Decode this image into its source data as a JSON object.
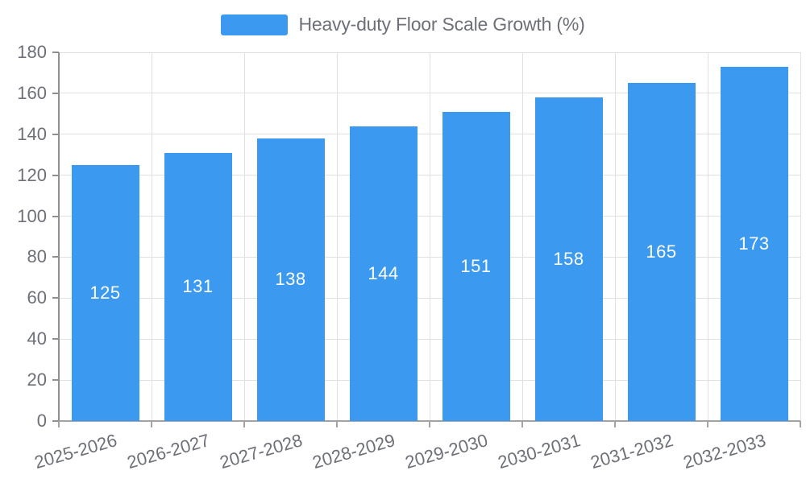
{
  "legend": {
    "label": "Heavy-duty Floor Scale Growth (%)"
  },
  "chart_data": {
    "type": "bar",
    "title": "",
    "series_name": "Heavy-duty Floor Scale Growth (%)",
    "categories": [
      "2025-2026",
      "2026-2027",
      "2027-2028",
      "2028-2029",
      "2029-2030",
      "2030-2031",
      "2031-2032",
      "2032-2033"
    ],
    "values": [
      125,
      131,
      138,
      144,
      151,
      158,
      165,
      173
    ],
    "value_labels": [
      "125",
      "131",
      "138",
      "144",
      "151",
      "158",
      "165",
      "173"
    ],
    "xlabel": "",
    "ylabel": "",
    "ylim": [
      0,
      180
    ],
    "ytick_step": 20,
    "yticks": [
      0,
      20,
      40,
      60,
      80,
      100,
      120,
      140,
      160,
      180
    ],
    "grid": true,
    "legend_position": "top-center",
    "value_label_position": "inside-center",
    "x_label_rotation_deg": -16,
    "colors": {
      "bar": "#3B9AF0",
      "value_label": "#FFFFFF",
      "gridline": "#E0E0E0",
      "axis_line": "#9C9C9C",
      "axis_label": "#6E7079",
      "legend_text": "#6E7079",
      "background": "#FFFFFF"
    }
  }
}
